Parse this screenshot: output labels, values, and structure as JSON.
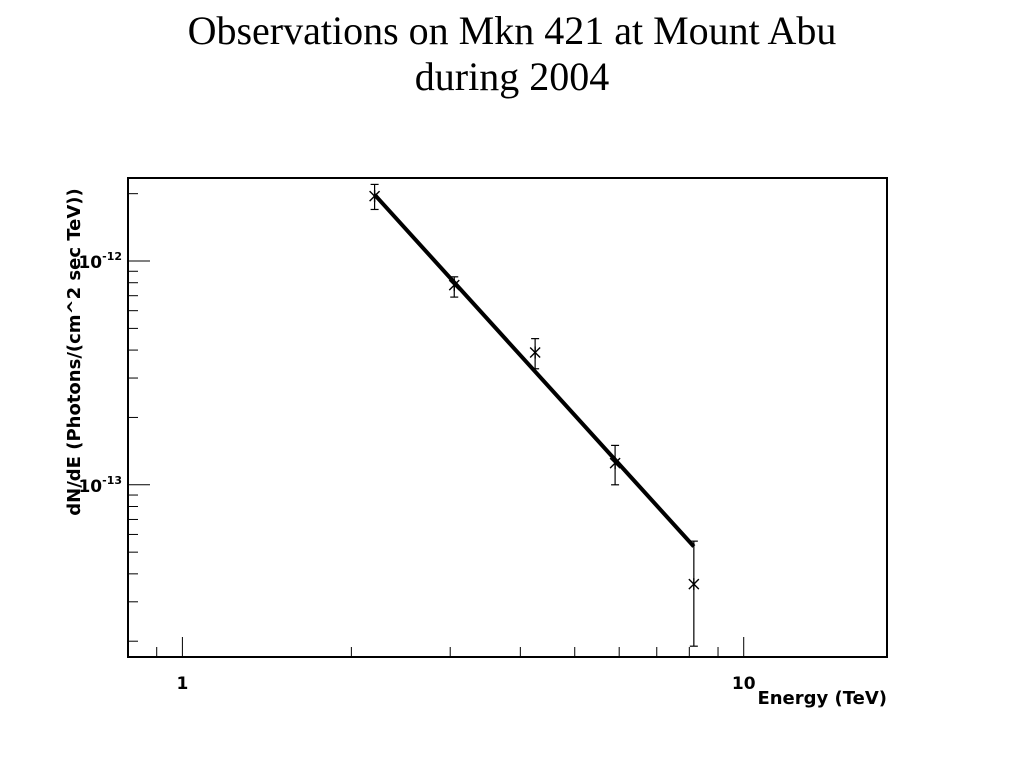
{
  "title_lines": [
    "Observations on Mkn 421 at Mount Abu",
    "during 2004"
  ],
  "chart_data": {
    "type": "scatter",
    "title": "Observations on Mkn 421 at Mount Abu during 2004",
    "xlabel": "Energy (TeV)",
    "ylabel": "dN/dE (Photons/(cm^2 sec TeV))",
    "xscale": "log",
    "yscale": "log",
    "xlim": [
      0.8,
      18
    ],
    "ylim": [
      1.7e-14,
      2.35e-12
    ],
    "grid": false,
    "x_ticks": [
      {
        "value": 1,
        "label": "1"
      },
      {
        "value": 10,
        "label": "10"
      }
    ],
    "y_ticks": [
      {
        "value": 1e-12,
        "base": "10",
        "exp": "-12"
      },
      {
        "value": 1e-13,
        "base": "10",
        "exp": "-13"
      }
    ],
    "points": [
      {
        "x": 2.2,
        "y": 1.95e-12,
        "y_low": 1.7e-12,
        "y_high": 2.2e-12
      },
      {
        "x": 3.05,
        "y": 7.8e-13,
        "y_low": 6.9e-13,
        "y_high": 8.5e-13
      },
      {
        "x": 4.25,
        "y": 3.9e-13,
        "y_low": 3.3e-13,
        "y_high": 4.5e-13
      },
      {
        "x": 5.9,
        "y": 1.25e-13,
        "y_low": 1e-13,
        "y_high": 1.5e-13
      },
      {
        "x": 8.15,
        "y": 3.6e-14,
        "y_low": 1.9e-14,
        "y_high": 5.6e-14
      }
    ],
    "fit": {
      "type": "power-law",
      "x": [
        2.2,
        8.15
      ],
      "y": [
        1.98e-12,
        5.3e-14
      ]
    }
  }
}
